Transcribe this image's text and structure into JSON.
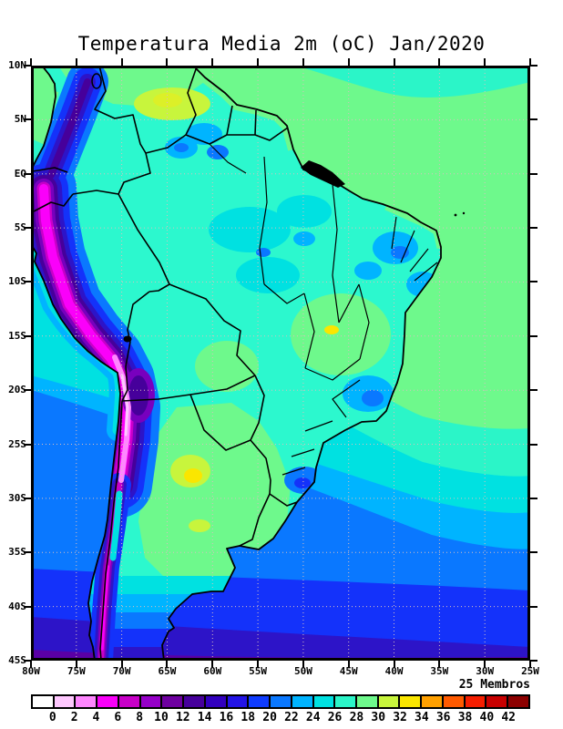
{
  "title": "Temperatura Media 2m (oC) Jan/2020",
  "map": {
    "lat_ticks": [
      "10N",
      "5N",
      "EQ",
      "5S",
      "10S",
      "15S",
      "20S",
      "25S",
      "30S",
      "35S",
      "40S",
      "45S"
    ],
    "lon_ticks": [
      "80W",
      "75W",
      "70W",
      "65W",
      "60W",
      "55W",
      "50W",
      "45W",
      "40W",
      "35W",
      "30W",
      "25W"
    ]
  },
  "colorbar": {
    "label": "25 Membros",
    "tick_values": [
      "0",
      "2",
      "4",
      "6",
      "8",
      "10",
      "12",
      "14",
      "16",
      "18",
      "20",
      "22",
      "24",
      "26",
      "28",
      "30",
      "32",
      "34",
      "36",
      "38",
      "40",
      "42"
    ],
    "cell_colors": [
      "#FFFFFF",
      "#FFC8FF",
      "#FF86FF",
      "#FA00FA",
      "#C800C8",
      "#9600C8",
      "#6E00A0",
      "#46009B",
      "#3200BE",
      "#2314E6",
      "#0F3CFF",
      "#0A78FF",
      "#00B4FF",
      "#00E1E1",
      "#2BF5C8",
      "#6EF98C",
      "#C8F53C",
      "#FAE600",
      "#FFA000",
      "#FF5A00",
      "#F51E00",
      "#C80000",
      "#8C0000"
    ]
  },
  "chart_data": {
    "type": "heatmap",
    "title": "Temperatura Media 2m (oC) Jan/2020",
    "units": "oC",
    "ensemble_label": "25 Membros",
    "contour_levels": [
      0,
      2,
      4,
      6,
      8,
      10,
      12,
      14,
      16,
      18,
      20,
      22,
      24,
      26,
      28,
      30,
      32,
      34,
      36,
      38,
      40,
      42
    ],
    "lon_range": [
      "80W",
      "25W"
    ],
    "lat_range": [
      "10N",
      "45S"
    ],
    "grid": "dotted 5-degree graticule",
    "legend_position": "bottom horizontal colorbar",
    "notes": "Filled contour map of mean 2m temperature over South America: 0-8 oC (magenta/pink) along Andes cordillera, 24-26 oC (cyan/aqua) over Amazon basin, 26-28 oC (green) tropical Atlantic, cooling bands 22 down to 8 oC (blue to purple) toward 45S in both oceans, warm 28-30 oC patches in Venezuela and Argentina"
  }
}
